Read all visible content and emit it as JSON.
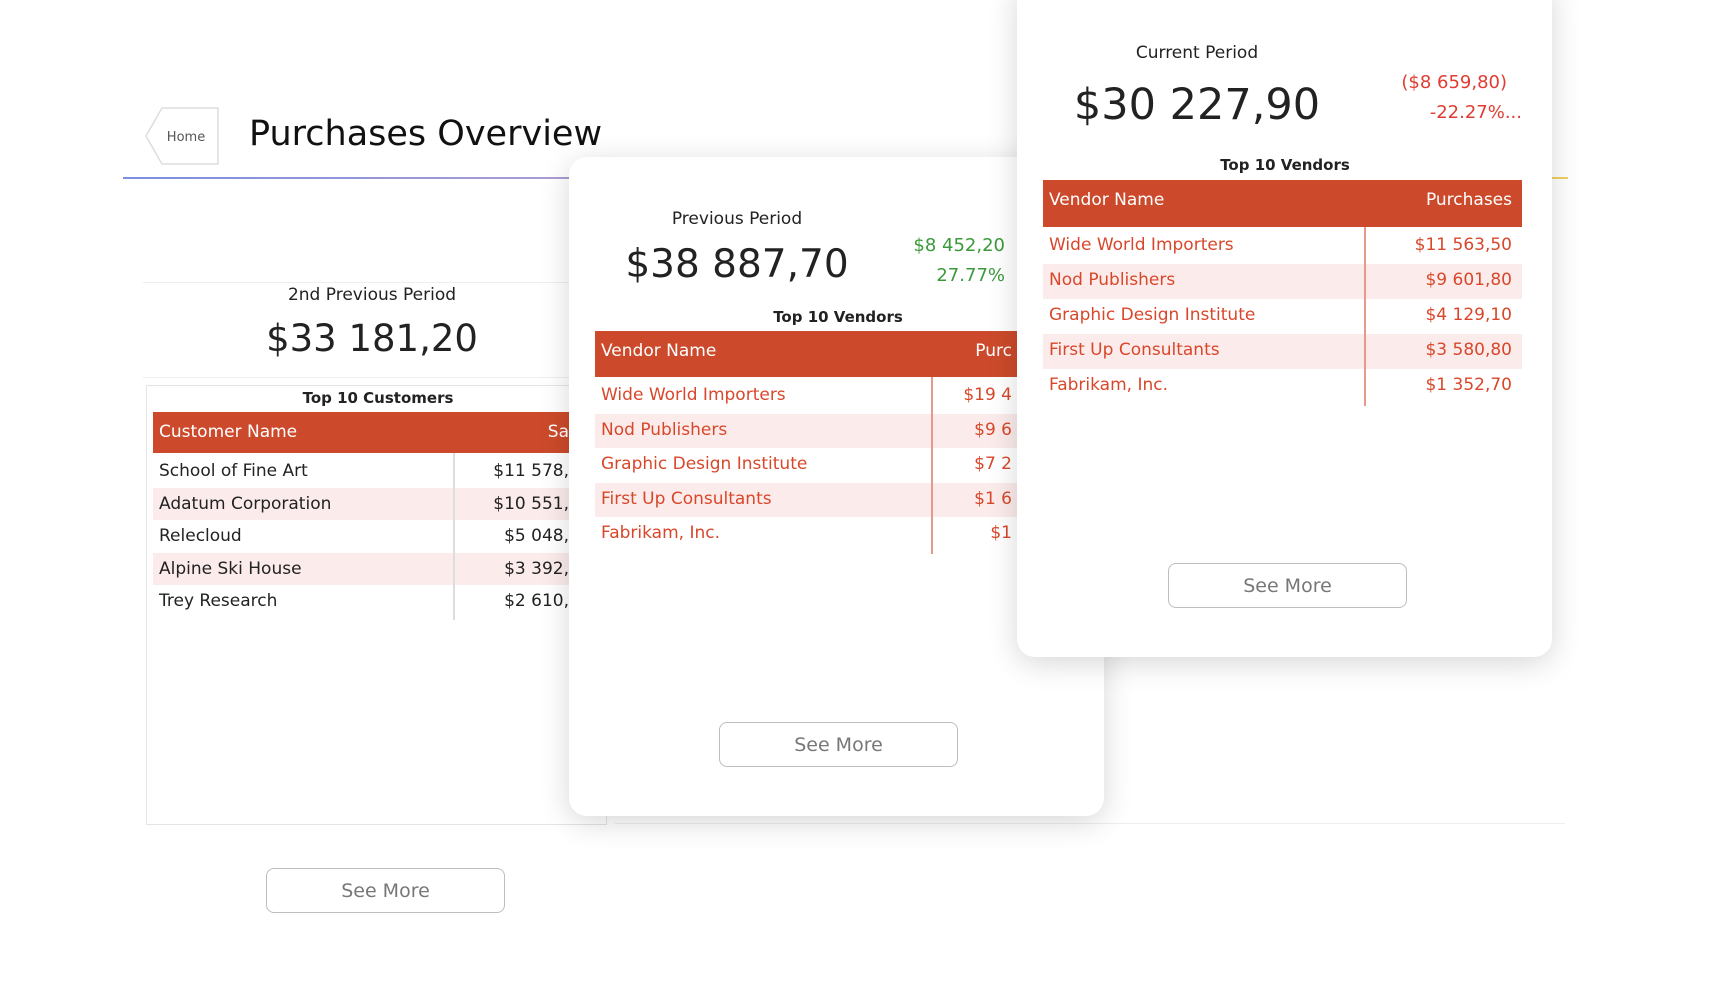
{
  "header": {
    "home": "Home",
    "title": "Purchases Overview"
  },
  "second_previous": {
    "label": "2nd Previous Period",
    "amount": "$33 181,20",
    "table": {
      "title": "Top 10 Customers",
      "columns": [
        "Customer Name",
        "Sa"
      ],
      "rows": [
        [
          "School of Fine Art",
          "$11 578,"
        ],
        [
          "Adatum Corporation",
          "$10 551,"
        ],
        [
          "Relecloud",
          "$5 048,"
        ],
        [
          "Alpine Ski House",
          "$3 392,"
        ],
        [
          "Trey Research",
          "$2 610,"
        ]
      ]
    },
    "button": "See More"
  },
  "previous": {
    "label": "Previous Period",
    "amount": "$38 887,70",
    "change": "$8 452,20",
    "change_pct": "27.77%",
    "table": {
      "title": "Top 10 Vendors",
      "columns": [
        "Vendor Name",
        "Purc"
      ],
      "rows": [
        [
          "Wide World Importers",
          "$19 4"
        ],
        [
          "Nod Publishers",
          "$9 6"
        ],
        [
          "Graphic Design Institute",
          "$7 2"
        ],
        [
          "First Up Consultants",
          "$1 6"
        ],
        [
          "Fabrikam, Inc.",
          "$1"
        ]
      ]
    },
    "button": "See More"
  },
  "current": {
    "label": "Current Period",
    "amount": "$30 227,90",
    "change": "($8 659,80)",
    "change_pct": "-22.27%...",
    "table": {
      "title": "Top 10 Vendors",
      "columns": [
        "Vendor Name",
        "Purchases"
      ],
      "rows": [
        [
          "Wide World Importers",
          "$11 563,50"
        ],
        [
          "Nod Publishers",
          "$9 601,80"
        ],
        [
          "Graphic Design Institute",
          "$4 129,10"
        ],
        [
          "First Up Consultants",
          "$3 580,80"
        ],
        [
          "Fabrikam, Inc.",
          "$1 352,70"
        ]
      ]
    },
    "button": "See More"
  }
}
